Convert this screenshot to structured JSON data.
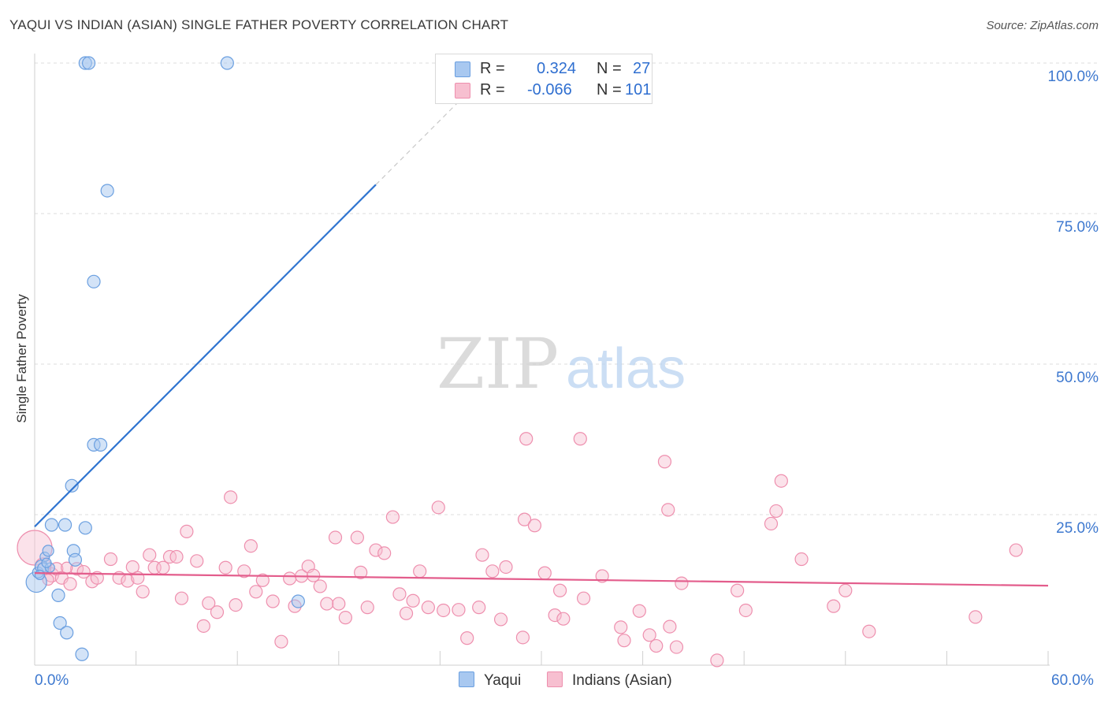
{
  "title": "YAQUI VS INDIAN (ASIAN) SINGLE FATHER POVERTY CORRELATION CHART",
  "source": "Source: ZipAtlas.com",
  "watermark": {
    "zip": "ZIP",
    "atlas": "atlas"
  },
  "colors": {
    "yaqui_fill": "#a8c8f0",
    "yaqui_stroke": "#6a9fe0",
    "yaqui_line": "#2f74d0",
    "indian_fill": "#f7bfd0",
    "indian_stroke": "#ee8fae",
    "indian_line": "#e35d8c",
    "tick_text": "#3d78cf",
    "grid": "#dddddd"
  },
  "legend": {
    "r_label": "R =",
    "n_label": "N =",
    "yaqui_r": "0.324",
    "yaqui_n": "27",
    "indian_r": "-0.066",
    "indian_n": "101"
  },
  "bottom_legend": {
    "yaqui": "Yaqui",
    "indian": "Indians (Asian)"
  },
  "chart_data": {
    "type": "scatter",
    "title": "YAQUI VS INDIAN (ASIAN) SINGLE FATHER POVERTY CORRELATION CHART",
    "xlabel": "",
    "ylabel": "Single Father Poverty",
    "xlim": [
      0,
      60
    ],
    "ylim": [
      0,
      100
    ],
    "x_tick_labels": [
      "0.0%",
      "60.0%"
    ],
    "y_ticks": [
      25,
      50,
      75,
      100
    ],
    "y_tick_labels": [
      "25.0%",
      "50.0%",
      "75.0%",
      "100.0%"
    ],
    "grid": true,
    "series": [
      {
        "name": "Yaqui",
        "r": 0.324,
        "n": 27,
        "trend": {
          "x0": 0,
          "y0": 23.0,
          "x1": 20.2,
          "y1": 79.8,
          "dash_to_x": 25.0,
          "dash_to_y": 93.3
        },
        "points": [
          [
            0.1,
            13.8,
            13
          ],
          [
            0.2,
            15.4,
            7
          ],
          [
            0.4,
            16.4,
            8
          ],
          [
            0.5,
            16.1,
            7
          ],
          [
            0.6,
            18.0,
            6
          ],
          [
            0.8,
            19.0,
            7
          ],
          [
            0.9,
            16.2,
            6
          ],
          [
            1.0,
            23.3,
            8
          ],
          [
            1.4,
            11.6,
            8
          ],
          [
            1.5,
            7.0,
            8
          ],
          [
            1.8,
            23.3,
            8
          ],
          [
            1.9,
            5.4,
            8
          ],
          [
            2.2,
            29.8,
            8
          ],
          [
            2.3,
            19.0,
            8
          ],
          [
            2.4,
            17.5,
            8
          ],
          [
            2.8,
            1.8,
            8
          ],
          [
            3.0,
            22.8,
            8
          ],
          [
            3.5,
            36.6,
            8
          ],
          [
            3.9,
            36.6,
            8
          ],
          [
            4.3,
            78.8,
            8
          ],
          [
            3.5,
            63.7,
            8
          ],
          [
            3.0,
            100.0,
            8
          ],
          [
            3.2,
            100.0,
            8
          ],
          [
            11.4,
            100.0,
            8
          ],
          [
            15.6,
            10.6,
            8
          ],
          [
            0.3,
            15.0,
            6
          ],
          [
            0.7,
            17.0,
            6
          ]
        ]
      },
      {
        "name": "Indians (Asian)",
        "r": -0.066,
        "n": 101,
        "trend": {
          "x0": 0,
          "y0": 15.3,
          "x1": 60,
          "y1": 13.2
        },
        "points": [
          [
            0.0,
            19.5,
            22
          ],
          [
            0.5,
            16.5,
            10
          ],
          [
            1.0,
            15.0,
            9
          ],
          [
            1.3,
            16.0,
            8
          ],
          [
            1.6,
            14.5,
            8
          ],
          [
            2.1,
            13.5,
            8
          ],
          [
            2.5,
            16.0,
            8
          ],
          [
            2.9,
            15.5,
            8
          ],
          [
            3.4,
            13.9,
            8
          ],
          [
            3.7,
            14.5,
            8
          ],
          [
            4.5,
            17.6,
            8
          ],
          [
            5.0,
            14.5,
            8
          ],
          [
            5.5,
            14.0,
            8
          ],
          [
            5.8,
            16.3,
            8
          ],
          [
            6.1,
            14.5,
            8
          ],
          [
            6.4,
            12.2,
            8
          ],
          [
            6.8,
            18.3,
            8
          ],
          [
            7.1,
            16.2,
            8
          ],
          [
            7.6,
            16.2,
            8
          ],
          [
            8.0,
            18.0,
            8
          ],
          [
            8.4,
            18.0,
            8
          ],
          [
            8.7,
            11.1,
            8
          ],
          [
            9.0,
            22.2,
            8
          ],
          [
            9.6,
            17.3,
            8
          ],
          [
            10.0,
            6.5,
            8
          ],
          [
            10.3,
            10.3,
            8
          ],
          [
            10.8,
            8.8,
            8
          ],
          [
            11.3,
            16.2,
            8
          ],
          [
            11.6,
            27.9,
            8
          ],
          [
            11.9,
            10.0,
            8
          ],
          [
            12.4,
            15.6,
            8
          ],
          [
            12.8,
            19.8,
            8
          ],
          [
            13.1,
            12.2,
            8
          ],
          [
            13.5,
            14.1,
            8
          ],
          [
            14.1,
            10.6,
            8
          ],
          [
            14.6,
            3.9,
            8
          ],
          [
            15.1,
            14.4,
            8
          ],
          [
            15.4,
            9.8,
            8
          ],
          [
            15.8,
            14.8,
            8
          ],
          [
            16.2,
            16.4,
            8
          ],
          [
            16.5,
            14.9,
            8
          ],
          [
            16.9,
            13.1,
            8
          ],
          [
            17.3,
            10.2,
            8
          ],
          [
            18.0,
            10.2,
            8
          ],
          [
            17.8,
            21.2,
            8
          ],
          [
            18.4,
            7.9,
            8
          ],
          [
            19.1,
            21.2,
            8
          ],
          [
            19.3,
            15.4,
            8
          ],
          [
            19.7,
            9.6,
            8
          ],
          [
            20.2,
            19.1,
            8
          ],
          [
            20.7,
            18.6,
            8
          ],
          [
            21.2,
            24.6,
            8
          ],
          [
            21.6,
            11.8,
            8
          ],
          [
            22.0,
            8.6,
            8
          ],
          [
            22.4,
            10.7,
            8
          ],
          [
            22.8,
            15.6,
            8
          ],
          [
            23.3,
            9.6,
            8
          ],
          [
            23.9,
            26.2,
            8
          ],
          [
            24.2,
            9.1,
            8
          ],
          [
            25.1,
            9.2,
            8
          ],
          [
            25.6,
            4.5,
            8
          ],
          [
            26.3,
            9.6,
            8
          ],
          [
            26.5,
            18.3,
            8
          ],
          [
            27.1,
            15.6,
            8
          ],
          [
            27.6,
            7.6,
            8
          ],
          [
            27.9,
            16.3,
            8
          ],
          [
            28.9,
            4.6,
            8
          ],
          [
            29.1,
            37.6,
            8
          ],
          [
            29.0,
            24.2,
            8
          ],
          [
            29.6,
            23.2,
            8
          ],
          [
            30.2,
            15.3,
            8
          ],
          [
            30.8,
            8.3,
            8
          ],
          [
            31.1,
            12.4,
            8
          ],
          [
            31.3,
            7.7,
            8
          ],
          [
            32.3,
            37.6,
            8
          ],
          [
            32.5,
            11.1,
            8
          ],
          [
            33.6,
            14.8,
            8
          ],
          [
            34.7,
            6.3,
            8
          ],
          [
            34.9,
            4.1,
            8
          ],
          [
            35.8,
            9.0,
            8
          ],
          [
            36.4,
            5.0,
            8
          ],
          [
            36.8,
            3.2,
            8
          ],
          [
            37.3,
            33.8,
            8
          ],
          [
            37.5,
            25.8,
            8
          ],
          [
            37.6,
            6.4,
            8
          ],
          [
            38.0,
            3.0,
            8
          ],
          [
            38.3,
            13.6,
            8
          ],
          [
            40.4,
            0.8,
            8
          ],
          [
            41.6,
            12.4,
            8
          ],
          [
            42.1,
            9.1,
            8
          ],
          [
            43.6,
            23.5,
            8
          ],
          [
            43.9,
            25.6,
            8
          ],
          [
            44.2,
            30.6,
            8
          ],
          [
            45.4,
            17.6,
            8
          ],
          [
            47.3,
            9.8,
            8
          ],
          [
            48.0,
            12.4,
            8
          ],
          [
            49.4,
            5.6,
            8
          ],
          [
            55.7,
            8.0,
            8
          ],
          [
            58.1,
            19.1,
            8
          ],
          [
            0.8,
            14.2,
            7
          ],
          [
            1.9,
            16.2,
            7
          ]
        ]
      }
    ]
  }
}
